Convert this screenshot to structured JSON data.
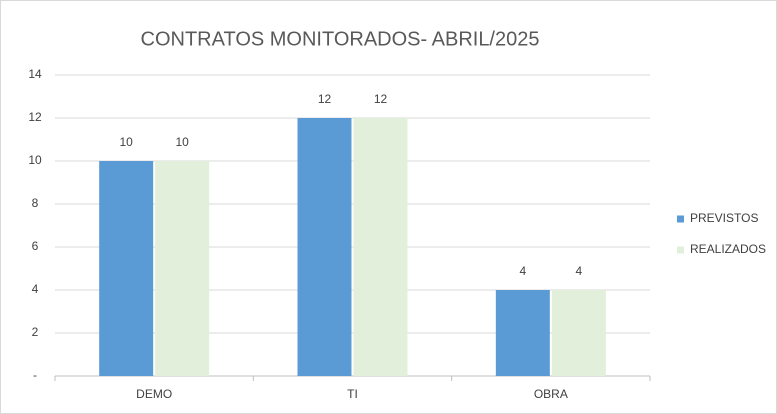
{
  "chart_data": {
    "type": "bar",
    "title": "CONTRATOS MONITORADOS- ABRIL/2025",
    "categories": [
      "DEMO",
      "TI",
      "OBRA"
    ],
    "series": [
      {
        "name": "PREVISTOS",
        "color": "#5b9bd5",
        "values": [
          10,
          12,
          4
        ]
      },
      {
        "name": "REALIZADOS",
        "color": "#e2efda",
        "values": [
          10,
          12,
          4
        ]
      }
    ],
    "ylim": [
      0,
      14
    ],
    "yticks": [
      {
        "value": 0,
        "label": "-"
      },
      2,
      4,
      6,
      8,
      10,
      12,
      14
    ],
    "grid": true,
    "legend": "right"
  }
}
